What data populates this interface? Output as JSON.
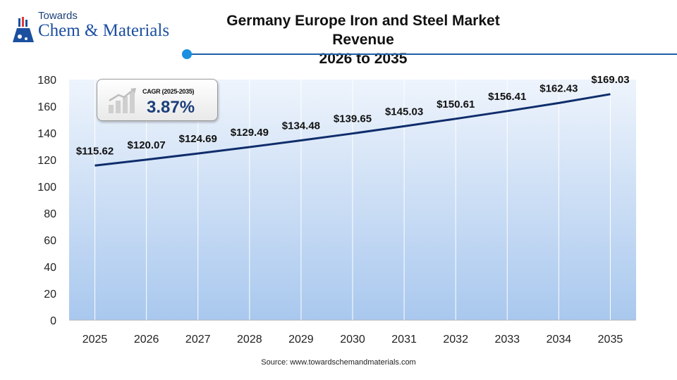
{
  "brand": {
    "line1": "Towards",
    "line2": "Chem & Materials"
  },
  "title_line1": "Germany Europe Iron and Steel Market Revenue",
  "title_line2": "2026 to 2035",
  "cagr": {
    "label": "CAGR (2025-2035)",
    "value": "3.87%"
  },
  "source": "Source: www.towardschemandmaterials.com",
  "colors": {
    "line": "#0f2d6b",
    "accent": "#1e5fa8",
    "area_top": "#eef4fc",
    "area_bottom": "#a9c8ee"
  },
  "chart_data": {
    "type": "line",
    "title": "Germany Europe Iron and Steel Market Revenue 2026 to 2035",
    "categories": [
      "2025",
      "2026",
      "2027",
      "2028",
      "2029",
      "2030",
      "2031",
      "2032",
      "2033",
      "2034",
      "2035"
    ],
    "values": [
      115.62,
      120.07,
      124.69,
      129.49,
      134.48,
      139.65,
      145.03,
      150.61,
      156.41,
      162.43,
      169.03
    ],
    "labels": [
      "$115.62",
      "$120.07",
      "$124.69",
      "$129.49",
      "$134.48",
      "$139.65",
      "$145.03",
      "$150.61",
      "$156.41",
      "$162.43",
      "$169.03"
    ],
    "yticks": [
      "0",
      "20",
      "40",
      "60",
      "80",
      "100",
      "120",
      "140",
      "160",
      "180"
    ],
    "ylim": [
      0,
      180
    ],
    "xlabel": "",
    "ylabel": "",
    "grid": "vertical"
  }
}
